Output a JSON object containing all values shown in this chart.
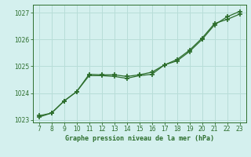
{
  "xlabel": "Graphe pression niveau de la mer (hPa)",
  "bg_color": "#d4f0ee",
  "grid_color": "#b8ddd8",
  "line_color": "#2d6e2d",
  "line1_x": [
    7,
    8,
    9,
    10,
    11,
    12,
    13,
    14,
    15,
    16,
    17,
    18,
    19,
    20,
    21,
    22,
    23
  ],
  "line1_y": [
    1023.15,
    1023.25,
    1023.7,
    1024.05,
    1024.65,
    1024.65,
    1024.62,
    1024.55,
    1024.65,
    1024.7,
    1025.05,
    1025.2,
    1025.55,
    1026.0,
    1026.55,
    1026.85,
    1027.05
  ],
  "line2_x": [
    7,
    8,
    9,
    10,
    11,
    12,
    13,
    14,
    15,
    16,
    17,
    18,
    19,
    20,
    21,
    22,
    23
  ],
  "line2_y": [
    1023.1,
    1023.25,
    1023.7,
    1024.05,
    1024.7,
    1024.68,
    1024.68,
    1024.62,
    1024.68,
    1024.78,
    1025.05,
    1025.25,
    1025.6,
    1026.05,
    1026.6,
    1026.75,
    1026.95
  ],
  "ylim": [
    1022.9,
    1027.3
  ],
  "yticks": [
    1023,
    1024,
    1025,
    1026,
    1027
  ],
  "xlim": [
    6.5,
    23.5
  ],
  "xticks": [
    7,
    8,
    9,
    10,
    11,
    12,
    13,
    14,
    15,
    16,
    17,
    18,
    19,
    20,
    21,
    22,
    23
  ]
}
